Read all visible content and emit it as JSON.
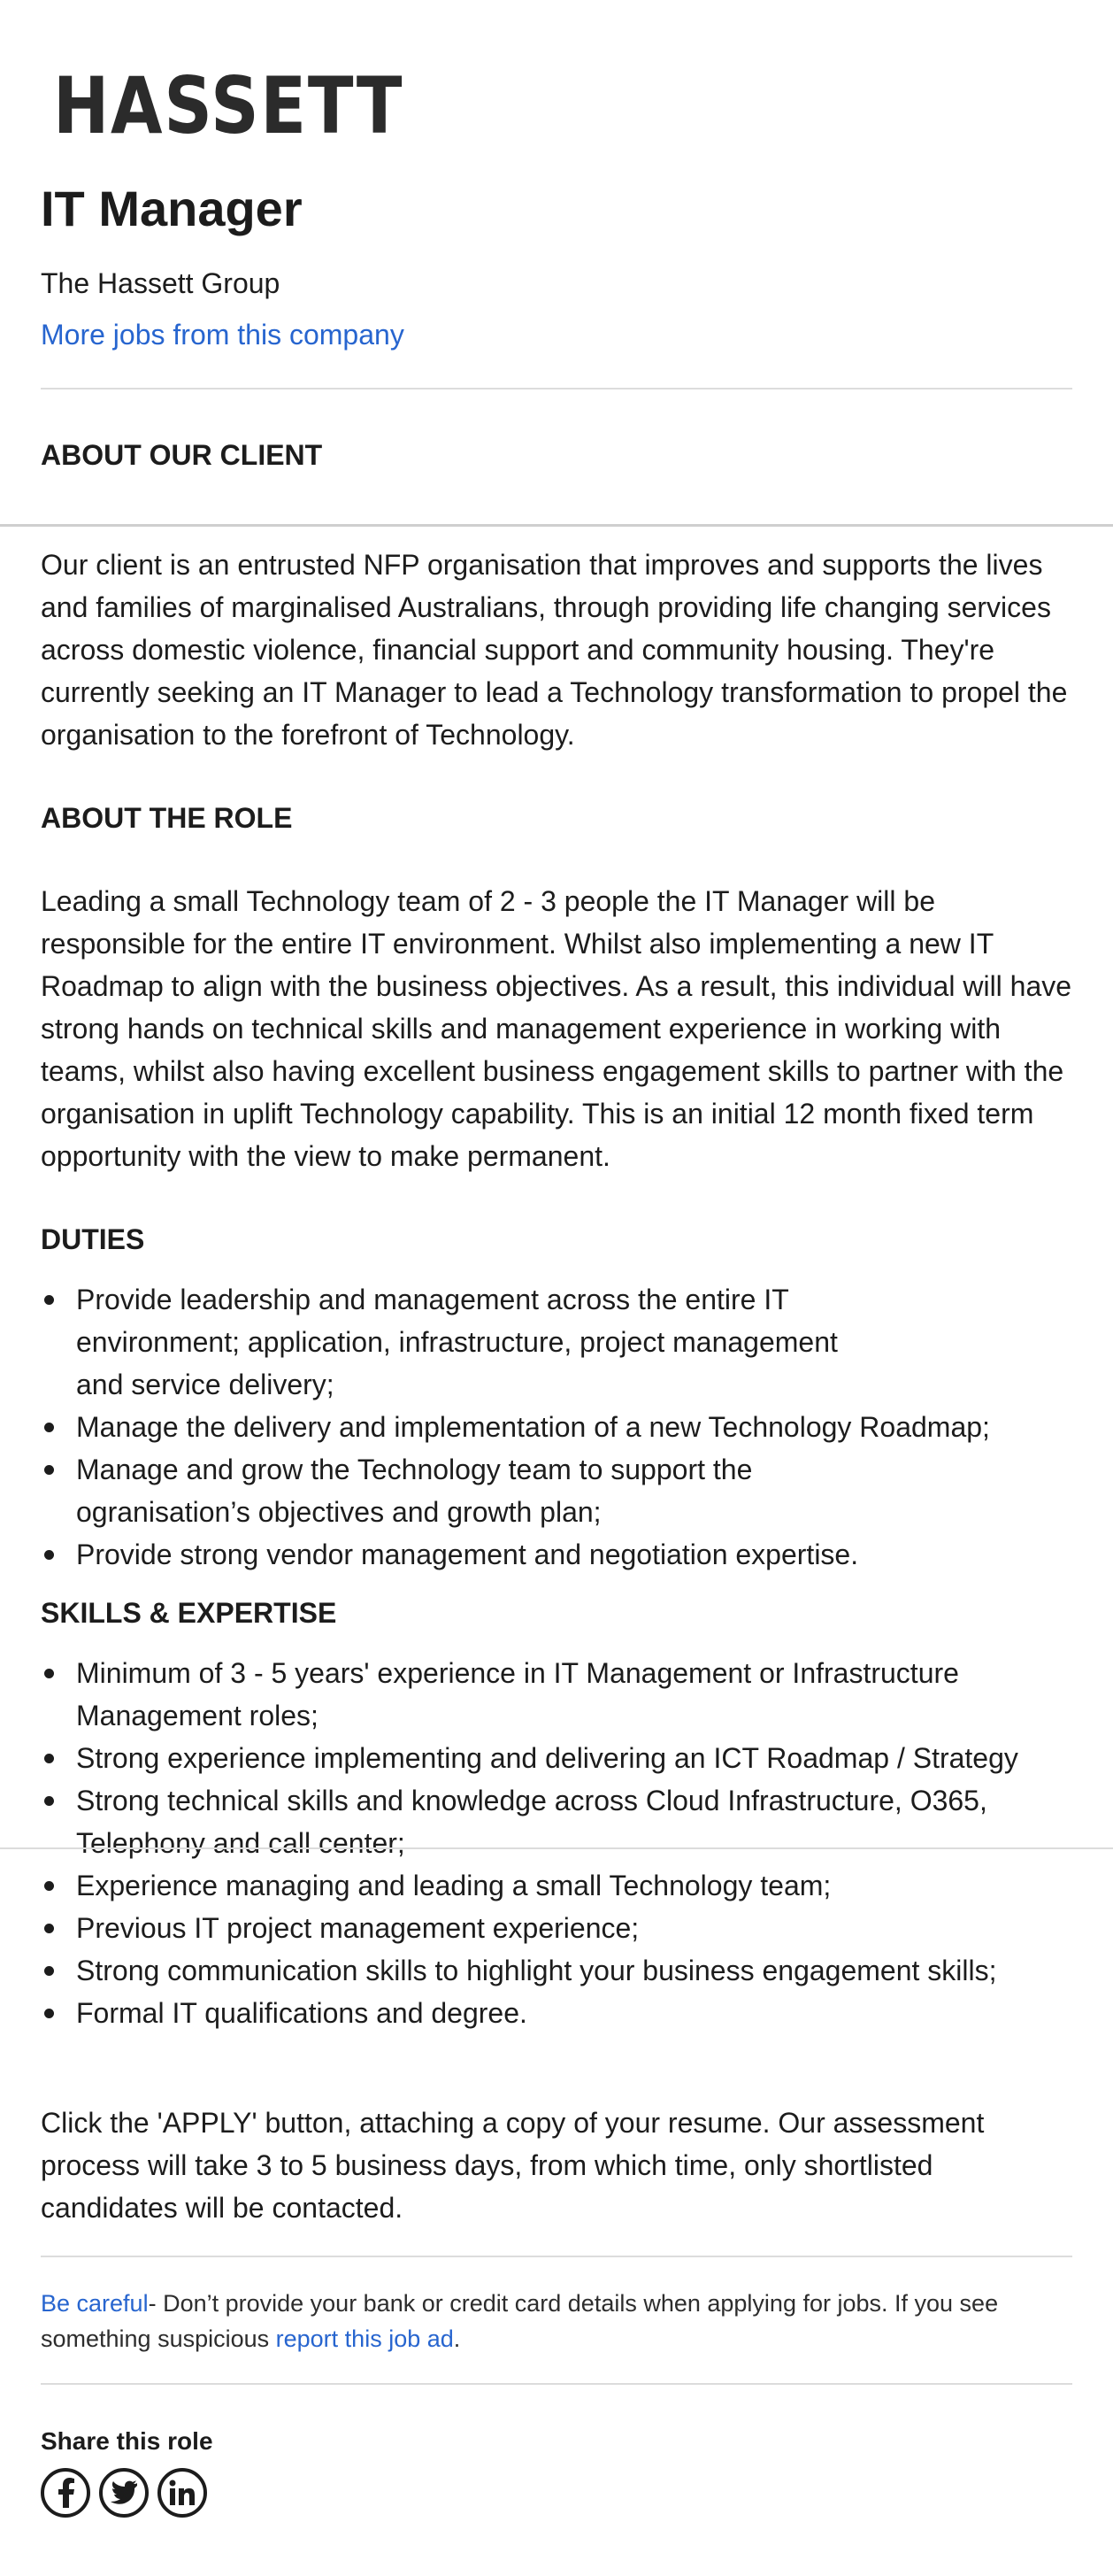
{
  "logo": {
    "text": "HASSETT"
  },
  "job": {
    "title": "IT Manager",
    "company": "The Hassett Group",
    "more_jobs_link": "More jobs from this company"
  },
  "about_client": {
    "heading": "ABOUT OUR CLIENT",
    "text": "Our client is an entrusted NFP organisation that improves and supports the lives and families of marginalised Australians, through providing life changing services across domestic violence, financial support and community housing. They're currently seeking an IT Manager to lead a Technology transformation to propel the organisation to the forefront of Technology."
  },
  "about_role": {
    "heading": "ABOUT THE ROLE",
    "text": "Leading a small Technology team of 2 - 3 people the IT Manager will be responsible for the entire IT environment. Whilst also implementing a new IT Roadmap to align with the business objectives. As a result, this individual will have strong hands on technical skills and management experience in working with teams, whilst also having excellent business engagement skills to partner with the organisation in uplift Technology capability. This is an initial 12 month fixed term opportunity with the view to make permanent."
  },
  "duties": {
    "heading": "DUTIES",
    "items": [
      "Provide leadership and management across the entire IT environment; application, infrastructure, project management and service delivery;",
      "Manage the delivery and implementation of a new Technology Roadmap;",
      "Manage and grow the Technology team to support the ogranisation’s objectives and growth plan;",
      "Provide strong vendor management and negotiation expertise."
    ]
  },
  "skills": {
    "heading": "SKILLS & EXPERTISE",
    "items": [
      "Minimum of 3 - 5 years' experience in IT Management or Infrastructure Management roles;",
      "Strong experience implementing and delivering an ICT Roadmap / Strategy",
      "Strong technical skills and knowledge across Cloud Infrastructure, O365, Telephony and call center;",
      "Experience managing and leading a small Technology team;",
      "Previous IT project management experience;",
      "Strong communication skills to highlight your business engagement skills;",
      "Formal IT qualifications and degree."
    ]
  },
  "apply_text": "Click the 'APPLY' button, attaching a copy of your resume. Our assessment process will take 3 to 5 business days, from which time, only shortlisted candidates will be contacted.",
  "warning": {
    "link1": "Be careful",
    "text1": "- Don’t provide your bank or credit card details when applying for jobs. If you see something suspicious ",
    "link2": "report this job ad",
    "text2": "."
  },
  "share": {
    "title": "Share this role",
    "icons": [
      "facebook-icon",
      "twitter-icon",
      "linkedin-icon"
    ]
  },
  "colors": {
    "link": "#2765cf",
    "text": "#1c1c1c",
    "divider": "#dcdcdc"
  }
}
